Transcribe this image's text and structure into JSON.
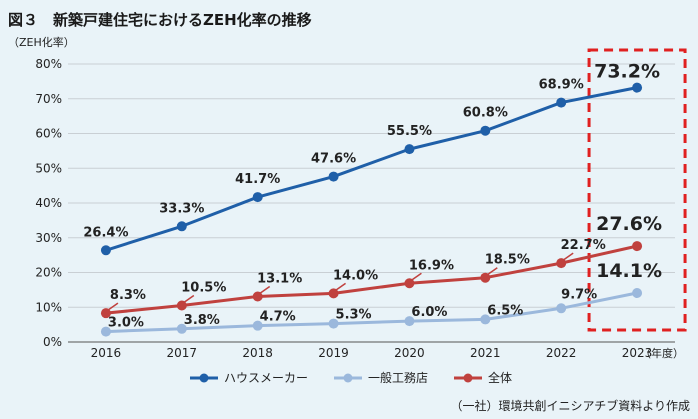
{
  "chart_data": {
    "type": "line",
    "title": "図３　新築戸建住宅におけるZEH化率の推移",
    "ylabel": "（ZEH化率）",
    "xlabel": "（年度）",
    "x": [
      "2016",
      "2017",
      "2018",
      "2019",
      "2020",
      "2021",
      "2022",
      "2023"
    ],
    "ylim": [
      0,
      80
    ],
    "yticks": [
      "0%",
      "10%",
      "20%",
      "30%",
      "40%",
      "50%",
      "60%",
      "70%",
      "80%"
    ],
    "grid": true,
    "legend_position": "bottom",
    "series": [
      {
        "name": "ハウスメーカー",
        "color": "#1f5fa8",
        "values": [
          26.4,
          33.3,
          41.7,
          47.6,
          55.5,
          60.8,
          68.9,
          73.2
        ],
        "labels": [
          "26.4%",
          "33.3%",
          "41.7%",
          "47.6%",
          "55.5%",
          "60.8%",
          "68.9%",
          "73.2%"
        ]
      },
      {
        "name": "一般工務店",
        "color": "#9bb8dc",
        "values": [
          3.0,
          3.8,
          4.7,
          5.3,
          6.0,
          6.5,
          9.7,
          14.1
        ],
        "labels": [
          "3.0%",
          "3.8%",
          "4.7%",
          "5.3%",
          "6.0%",
          "6.5%",
          "9.7%",
          "14.1%"
        ]
      },
      {
        "name": "全体",
        "color": "#c0413e",
        "values": [
          8.3,
          10.5,
          13.1,
          14.0,
          16.9,
          18.5,
          22.7,
          27.6
        ],
        "labels": [
          "8.3%",
          "10.5%",
          "13.1%",
          "14.0%",
          "16.9%",
          "18.5%",
          "22.7%",
          "27.6%"
        ]
      }
    ],
    "highlight": {
      "category": "2023",
      "style": "dashed-box",
      "color": "#e02020"
    },
    "source": "（一社）環境共創イニシアチブ資料より作成"
  }
}
